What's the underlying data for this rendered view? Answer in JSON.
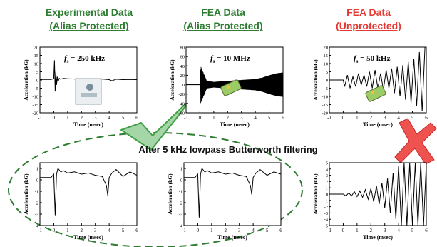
{
  "headers": [
    {
      "line1": "Experimental Data",
      "line2": "(Alias Protected)",
      "color": "#2e7d32"
    },
    {
      "line1": "FEA Data",
      "line2": "(Alias Protected)",
      "color": "#2e7d32"
    },
    {
      "line1": "FEA Data",
      "line2": "(Unprotected)",
      "color": "#e53935"
    }
  ],
  "filter_caption": "After 5 kHz lowpass Butterworth filtering",
  "chart_data": [
    {
      "type": "line",
      "panel": "top-left",
      "annotation": "fs = 250 kHz",
      "annot_main": "f",
      "annot_sub": "s",
      "annot_rest": " = 250 kHz",
      "xlabel": "Time (msec)",
      "ylabel": "Acceleration (kG)",
      "xlim": [
        -1,
        6
      ],
      "ylim": [
        -20,
        20
      ],
      "xticks": [
        -1,
        0,
        1,
        2,
        3,
        4,
        5,
        6
      ],
      "yticks": [
        -20,
        -15,
        -10,
        -5,
        0,
        5,
        10,
        15,
        20
      ],
      "series": [
        {
          "x": [
            -1,
            -0.2,
            0,
            0.05,
            0.1,
            0.15,
            0.2,
            0.25,
            0.3,
            0.4,
            0.5,
            0.7,
            1,
            1.5,
            2,
            2.5,
            3,
            3.5,
            4,
            4.2,
            4.5,
            5,
            5.5,
            6
          ],
          "y": [
            0.3,
            0.3,
            0.8,
            12,
            -7,
            5,
            -3,
            2,
            -1,
            1,
            0.5,
            1,
            0.8,
            0.6,
            0.7,
            0.4,
            0.5,
            0.6,
            0.2,
            -0.5,
            0.5,
            0.2,
            0.3,
            0.2
          ]
        }
      ]
    },
    {
      "type": "line",
      "panel": "top-middle",
      "annotation": "fs = 10 MHz",
      "annot_main": "f",
      "annot_sub": "s",
      "annot_rest": " = 10 MHz",
      "xlabel": "Time (msec)",
      "ylabel": "Acceleration (kG)",
      "xlim": [
        -1,
        6
      ],
      "ylim": [
        -60,
        80
      ],
      "xticks": [
        -1,
        0,
        1,
        2,
        3,
        4,
        5,
        6
      ],
      "yticks": [
        -60,
        -40,
        -20,
        0,
        20,
        40,
        60,
        80
      ],
      "envelope": {
        "x": [
          0,
          0.05,
          0.5,
          1,
          2,
          3,
          4,
          4.5,
          5,
          5.5,
          6
        ],
        "amp": [
          0,
          40,
          8,
          6,
          8,
          10,
          12,
          15,
          20,
          24,
          26
        ]
      },
      "series": [
        {
          "x": [
            -1,
            0,
            6
          ],
          "y": [
            0,
            0,
            0
          ]
        }
      ]
    },
    {
      "type": "line",
      "panel": "top-right",
      "annotation": "fs = 50 kHz",
      "annot_main": "f",
      "annot_sub": "s",
      "annot_rest": " = 50 kHz",
      "xlabel": "Time (msec)",
      "ylabel": "Acceleration (kG)",
      "xlim": [
        -1,
        6
      ],
      "ylim": [
        -20,
        20
      ],
      "xticks": [
        -1,
        0,
        1,
        2,
        3,
        4,
        5,
        6
      ],
      "yticks": [
        -20,
        -15,
        -10,
        -5,
        0,
        5,
        10,
        15,
        20
      ],
      "series": [
        {
          "x": [
            -1,
            0,
            0.1,
            0.3,
            0.5,
            0.7,
            0.9,
            1.1,
            1.3,
            1.5,
            1.7,
            1.9,
            2.1,
            2.3,
            2.5,
            2.7,
            2.9,
            3.1,
            3.3,
            3.5,
            3.7,
            3.9,
            4.1,
            4.3,
            4.5,
            4.7,
            4.9,
            5.1,
            5.3,
            5.5,
            5.7,
            5.9
          ],
          "y": [
            0,
            0,
            -4,
            3,
            -5,
            2,
            -4,
            4,
            -3,
            3,
            -4,
            5,
            -5,
            6,
            -5,
            4,
            -6,
            6,
            -5,
            7,
            -8,
            8,
            -10,
            9,
            -12,
            11,
            -14,
            13,
            -16,
            17,
            -19,
            20
          ]
        }
      ]
    },
    {
      "type": "line",
      "panel": "bottom-left",
      "xlabel": "Time (msec)",
      "ylabel": "Acceleration (kG)",
      "xlim": [
        -1,
        6
      ],
      "ylim": [
        -4,
        1.5
      ],
      "xticks": [
        -1,
        0,
        1,
        2,
        3,
        4,
        5,
        6
      ],
      "yticks": [
        -4,
        -3,
        -2,
        -1,
        0,
        1
      ],
      "series": [
        {
          "x": [
            -1,
            -0.2,
            0,
            0.1,
            0.2,
            0.3,
            0.5,
            0.7,
            1,
            1.5,
            2,
            2.5,
            3,
            3.5,
            3.8,
            3.9,
            4,
            4.2,
            4.5,
            5,
            5.5,
            6
          ],
          "y": [
            0.2,
            0.2,
            0.5,
            -3.1,
            0.5,
            1,
            0.7,
            0.8,
            0.6,
            0.7,
            0.5,
            0.6,
            0.4,
            0.3,
            -0.5,
            -1.4,
            0.2,
            0.6,
            0.9,
            0.3,
            0.7,
            0.4
          ]
        }
      ]
    },
    {
      "type": "line",
      "panel": "bottom-middle",
      "xlabel": "Time (msec)",
      "ylabel": "Acceleration (kG)",
      "xlim": [
        -1,
        6
      ],
      "ylim": [
        -4,
        1.5
      ],
      "xticks": [
        -1,
        0,
        1,
        2,
        3,
        4,
        5,
        6
      ],
      "yticks": [
        -4,
        -3,
        -2,
        -1,
        0,
        1
      ],
      "series": [
        {
          "x": [
            -1,
            -0.2,
            0,
            0.1,
            0.2,
            0.3,
            0.5,
            0.7,
            1,
            1.5,
            2,
            2.5,
            3,
            3.5,
            3.8,
            3.9,
            4,
            4.2,
            4.5,
            5,
            5.5,
            6
          ],
          "y": [
            0.2,
            0.2,
            0.5,
            -3.3,
            0.5,
            1,
            0.7,
            0.8,
            0.6,
            0.7,
            0.5,
            0.6,
            0.4,
            0.3,
            -0.5,
            -1.3,
            0.2,
            0.6,
            0.9,
            0.4,
            0.7,
            0.5
          ]
        }
      ]
    },
    {
      "type": "line",
      "panel": "bottom-right",
      "xlabel": "Time (msec)",
      "ylabel": "Acceleration (kG)",
      "xlim": [
        -1,
        6
      ],
      "ylim": [
        -5,
        5
      ],
      "xticks": [
        -1,
        0,
        1,
        2,
        3,
        4,
        5,
        6
      ],
      "yticks": [
        -5,
        -4,
        -3,
        -2,
        -1,
        0,
        1,
        2,
        3,
        4,
        5
      ],
      "series": [
        {
          "x": [
            -1,
            0,
            0.2,
            0.4,
            0.6,
            0.8,
            1,
            1.2,
            1.4,
            1.6,
            1.8,
            2,
            2.2,
            2.4,
            2.6,
            2.8,
            3,
            3.2,
            3.4,
            3.6,
            3.8,
            4,
            4.2,
            4.4,
            4.6,
            4.8,
            5,
            5.2,
            5.4,
            5.6,
            5.8,
            6
          ],
          "y": [
            0,
            0,
            -0.3,
            0.2,
            -0.3,
            0.4,
            -0.4,
            0.5,
            -0.5,
            0.7,
            -0.8,
            0.9,
            -1.2,
            1.3,
            -1.6,
            1.8,
            -2.2,
            2.5,
            -3,
            3.4,
            -4,
            4.5,
            -5,
            5,
            -5,
            5,
            -5,
            5,
            -5,
            5,
            -5,
            5
          ]
        }
      ]
    }
  ],
  "colors": {
    "green": "#2e7d32",
    "red": "#e53935",
    "check": "#66bb6a",
    "ellipse": "#2e7d32"
  }
}
